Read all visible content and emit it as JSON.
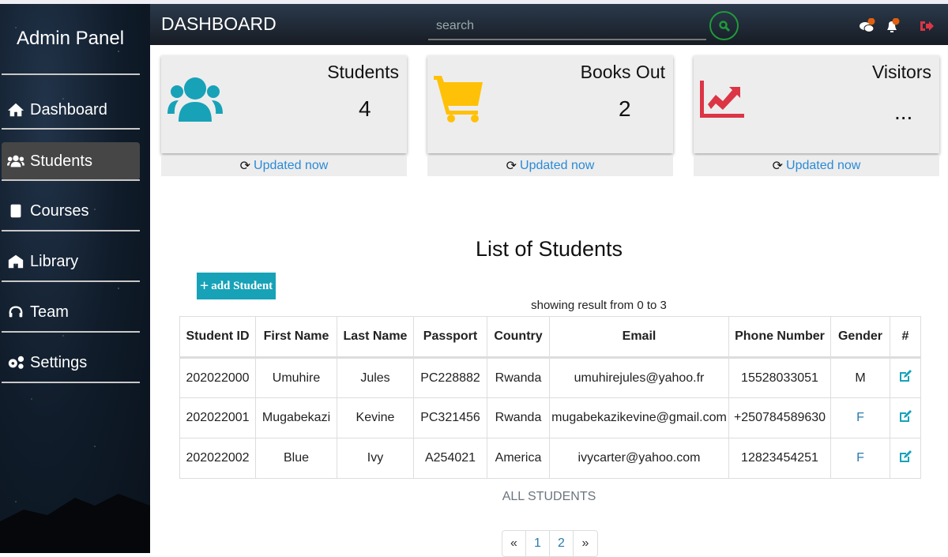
{
  "sidebar": {
    "brand": "Admin Panel",
    "items": [
      {
        "label": "Dashboard",
        "icon": "home-icon"
      },
      {
        "label": "Students",
        "icon": "users-icon",
        "active": true
      },
      {
        "label": "Courses",
        "icon": "book-icon"
      },
      {
        "label": "Library",
        "icon": "library-icon"
      },
      {
        "label": "Team",
        "icon": "headset-icon"
      },
      {
        "label": "Settings",
        "icon": "cogs-icon"
      }
    ]
  },
  "header": {
    "title": "DASHBOARD",
    "search_placeholder": "search",
    "accent": "#1f9a3a"
  },
  "cards": [
    {
      "label": "Students",
      "value": "4",
      "icon": "users-icon",
      "color": "#17a2b8",
      "updated": "Updated now"
    },
    {
      "label": "Books Out",
      "value": "2",
      "icon": "cart-icon",
      "color": "#ffc107",
      "updated": "Updated now"
    },
    {
      "label": "Visitors",
      "value": "...",
      "icon": "chart-line-icon",
      "color": "#dc3545",
      "updated": "Updated now"
    }
  ],
  "main": {
    "heading": "List of Students",
    "add_label": "add Student",
    "showing": "showing result from 0 to 3",
    "all_label": "ALL STUDENTS"
  },
  "table": {
    "headers": [
      "Student ID",
      "First Name",
      "Last Name",
      "Passport",
      "Country",
      "Email",
      "Phone Number",
      "Gender",
      "#"
    ],
    "rows": [
      [
        "202022000",
        "Umuhire",
        "Jules",
        "PC228882",
        "Rwanda",
        "umuhirejules@yahoo.fr",
        "15528033051",
        "M"
      ],
      [
        "202022001",
        "Mugabekazi",
        "Kevine",
        "PC321456",
        "Rwanda",
        "mugabekazikevine@gmail.com",
        "+250784589630",
        "F"
      ],
      [
        "202022002",
        "Blue",
        "Ivy",
        "A254021",
        "America",
        "ivycarter@yahoo.com",
        "12823454251",
        "F"
      ]
    ]
  },
  "pagination": {
    "prev": "«",
    "pages": [
      "1",
      "2"
    ],
    "next": "»"
  }
}
